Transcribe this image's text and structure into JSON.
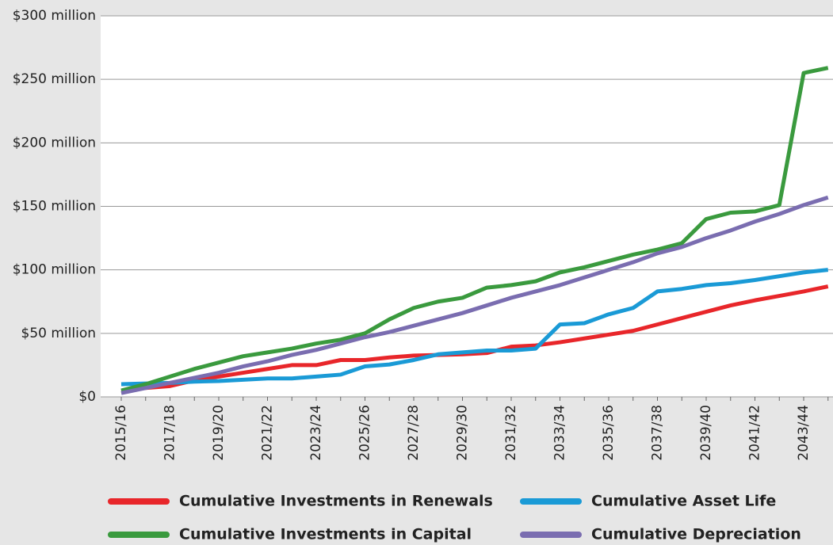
{
  "chart_data": {
    "type": "line",
    "categories": [
      "2015/16",
      null,
      "2017/18",
      null,
      "2019/20",
      null,
      "2021/22",
      null,
      "2023/24",
      null,
      "2025/26",
      null,
      "2027/28",
      null,
      "2029/30",
      null,
      "2031/32",
      null,
      "2033/34",
      null,
      "2035/36",
      null,
      "2037/38",
      null,
      "2039/40",
      null,
      "2041/42",
      null,
      "2043/44",
      null
    ],
    "series": [
      {
        "name": "Cumulative Investments in Renewals",
        "color": "#e8262a",
        "values": [
          5,
          7,
          8.5,
          13,
          16,
          19,
          22,
          25,
          25,
          29,
          29,
          31,
          32.5,
          33,
          33.5,
          34.5,
          39.5,
          40.5,
          43,
          46,
          49,
          52,
          57,
          62,
          67,
          72,
          76,
          79.5,
          83,
          87
        ]
      },
      {
        "name": "Cumulative Asset Life",
        "color": "#1a9ad6",
        "values": [
          10,
          10.5,
          11,
          12,
          12.5,
          13.5,
          14.5,
          14.5,
          16,
          17.5,
          24,
          25.5,
          29,
          33.5,
          35,
          36.5,
          36.5,
          38,
          57,
          58,
          65,
          70,
          83,
          85,
          88,
          89.5,
          92,
          95,
          98,
          100
        ]
      },
      {
        "name": "Cumulative Investments in Capital",
        "color": "#3a9a3e",
        "values": [
          5,
          10,
          16,
          22,
          27,
          32,
          35,
          38,
          42,
          45,
          50,
          61,
          70,
          75,
          78,
          86,
          88,
          91,
          98,
          102,
          107,
          112,
          116,
          121,
          140,
          145,
          146,
          151,
          255,
          259
        ]
      },
      {
        "name": "Cumulative Depreciation",
        "color": "#7a6db0",
        "values": [
          3,
          7,
          11,
          15,
          19,
          24,
          28,
          33,
          37,
          42,
          47,
          51,
          56,
          61,
          66,
          72,
          78,
          83,
          88,
          94,
          100,
          106,
          113,
          118,
          125,
          131,
          138,
          144,
          151,
          157
        ]
      }
    ],
    "ylim": [
      0,
      300
    ],
    "yticks": [
      {
        "value": 0,
        "label": "$0"
      },
      {
        "value": 50,
        "label": "$50 million"
      },
      {
        "value": 100,
        "label": "$100 million"
      },
      {
        "value": 150,
        "label": "$150 million"
      },
      {
        "value": 200,
        "label": "$200 million"
      },
      {
        "value": 250,
        "label": "$250 million"
      },
      {
        "value": 300,
        "label": "$300 million"
      }
    ],
    "grid": true
  }
}
